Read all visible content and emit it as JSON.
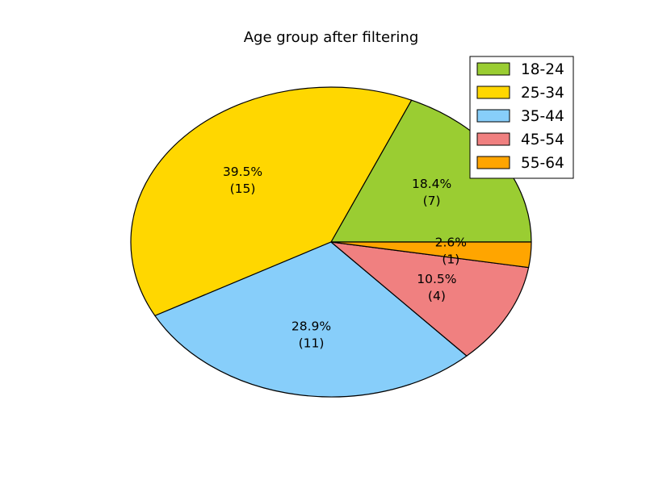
{
  "chart_data": {
    "type": "pie",
    "title": "Age group after filtering",
    "categories": [
      "18-24",
      "25-34",
      "35-44",
      "45-54",
      "55-64"
    ],
    "values": [
      7,
      15,
      11,
      4,
      1
    ],
    "percent_labels": [
      "18.4%",
      "39.5%",
      "28.9%",
      "10.5%",
      "2.6%"
    ],
    "count_labels": [
      "(7)",
      "(15)",
      "(11)",
      "(4)",
      "(1)"
    ],
    "colors": [
      "#9acd32",
      "#ffd700",
      "#87cefa",
      "#f08080",
      "#ffa500"
    ],
    "start_angle_deg": 0,
    "direction": "counterclockwise",
    "legend_position": "top-right"
  }
}
